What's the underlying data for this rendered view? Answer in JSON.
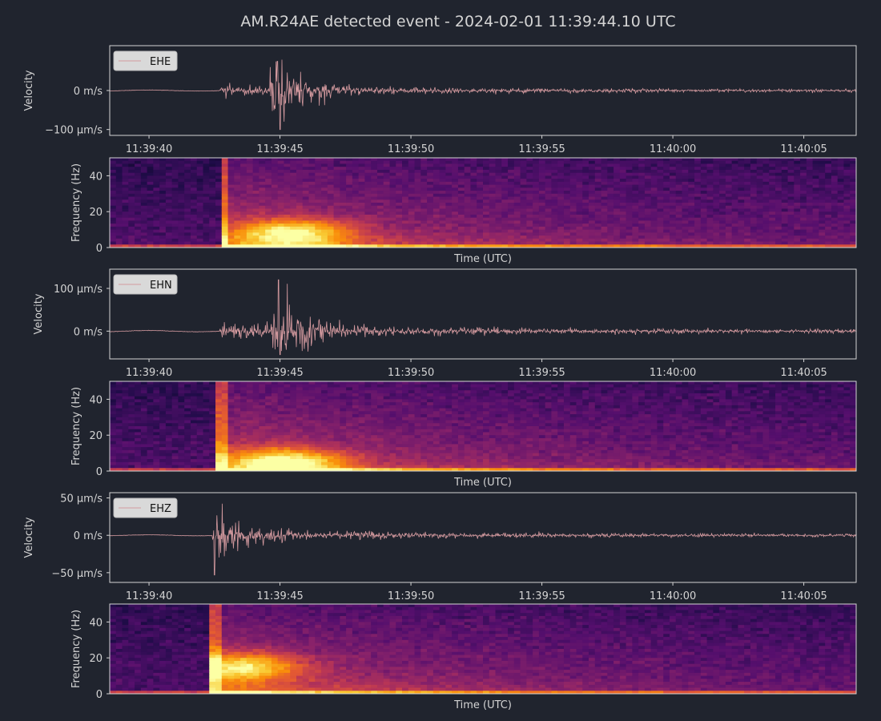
{
  "figure": {
    "title": "AM.R24AE detected event - 2024-02-01 11:39:44.10 UTC",
    "background": "#20242e",
    "text_color": "#d4d4d4",
    "trace_color": "#d49a9f"
  },
  "chart_data": [
    {
      "type": "line",
      "channel": "EHE",
      "legend": "EHE",
      "legend_placement": "top-left",
      "ylabel": "Velocity",
      "y_unit": "µm/s",
      "ylim": [
        -115,
        115
      ],
      "yticks": [
        {
          "value": 0,
          "label": "0 m/s"
        },
        {
          "value": -100,
          "label": "−100 µm/s"
        }
      ],
      "x_range": [
        "11:39:38.5",
        "11:40:07.0"
      ],
      "xticks": [
        "11:39:40",
        "11:39:45",
        "11:39:50",
        "11:39:55",
        "11:40:00",
        "11:40:05"
      ],
      "grid": false,
      "peak_positive": {
        "time": "11:39:44.9",
        "value": 75
      },
      "peak_negative": {
        "time": "11:39:45.0",
        "value": -100
      },
      "onset_time": "11:39:42.7"
    },
    {
      "type": "heatmap",
      "channel": "EHE",
      "xlabel": "Time (UTC)",
      "ylabel": "Frequency (Hz)",
      "ylim": [
        0,
        50
      ],
      "yticks": [
        0,
        20,
        40
      ],
      "colormap": "inferno",
      "onset_time": "11:39:42.7",
      "energy_peak": {
        "time": "11:39:45.5",
        "freq_hz": 8
      }
    },
    {
      "type": "line",
      "channel": "EHN",
      "legend": "EHN",
      "legend_placement": "top-left",
      "ylabel": "Velocity",
      "y_unit": "µm/s",
      "ylim": [
        -65,
        145
      ],
      "yticks": [
        {
          "value": 100,
          "label": "100 µm/s"
        },
        {
          "value": 0,
          "label": "0 m/s"
        }
      ],
      "x_range": [
        "11:39:38.5",
        "11:40:07.0"
      ],
      "xticks": [
        "11:39:40",
        "11:39:45",
        "11:39:50",
        "11:39:55",
        "11:40:00",
        "11:40:05"
      ],
      "grid": false,
      "peak_positive": {
        "time": "11:39:44.95",
        "value": 120
      },
      "peak_negative": {
        "time": "11:39:45.0",
        "value": -55
      },
      "onset_time": "11:39:42.7"
    },
    {
      "type": "heatmap",
      "channel": "EHN",
      "xlabel": "Time (UTC)",
      "ylabel": "Frequency (Hz)",
      "ylim": [
        0,
        50
      ],
      "yticks": [
        0,
        20,
        40
      ],
      "colormap": "inferno",
      "onset_time": "11:39:42.6",
      "energy_peak": {
        "time": "11:39:45.2",
        "freq_hz": 5
      }
    },
    {
      "type": "line",
      "channel": "EHZ",
      "legend": "EHZ",
      "legend_placement": "top-left",
      "ylabel": "Velocity",
      "y_unit": "µm/s",
      "ylim": [
        -63,
        57
      ],
      "yticks": [
        {
          "value": 50,
          "label": "50 µm/s"
        },
        {
          "value": 0,
          "label": "0 m/s"
        },
        {
          "value": -50,
          "label": "−50 µm/s"
        }
      ],
      "x_range": [
        "11:39:38.5",
        "11:40:07.0"
      ],
      "xticks": [
        "11:39:40",
        "11:39:45",
        "11:39:50",
        "11:39:55",
        "11:40:00",
        "11:40:05"
      ],
      "grid": false,
      "peak_positive": {
        "time": "11:39:42.5",
        "value": 47
      },
      "peak_negative": {
        "time": "11:39:42.5",
        "value": -53
      },
      "onset_time": "11:39:42.4"
    },
    {
      "type": "heatmap",
      "channel": "EHZ",
      "xlabel": "Time (UTC)",
      "ylabel": "Frequency (Hz)",
      "ylim": [
        0,
        50
      ],
      "yticks": [
        0,
        20,
        40
      ],
      "colormap": "inferno",
      "onset_time": "11:39:42.3",
      "energy_peak": {
        "time": "11:39:43.5",
        "freq_hz": 15
      }
    }
  ]
}
